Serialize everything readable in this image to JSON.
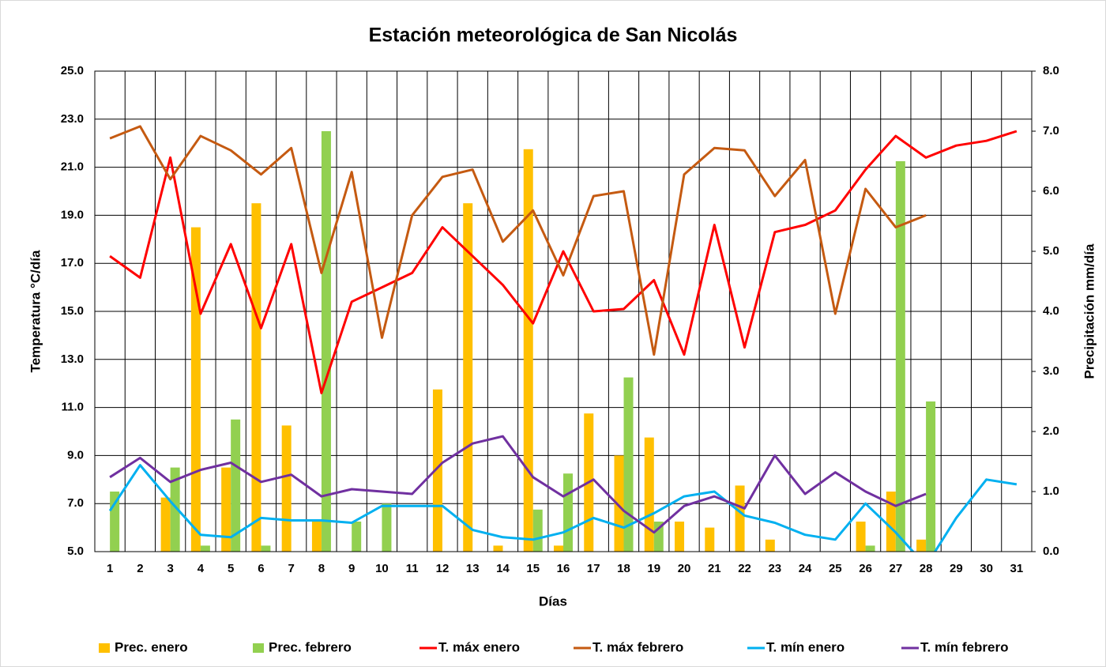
{
  "chart_data": {
    "type": "bar_line",
    "title": "Estación meteorológica de San Nicolás",
    "x_label": "Días",
    "y_label": "Temperatura °C/día",
    "y2_label": "Precipitación mm/día",
    "categories": [
      "1",
      "2",
      "3",
      "4",
      "5",
      "6",
      "7",
      "8",
      "9",
      "10",
      "11",
      "12",
      "13",
      "14",
      "15",
      "16",
      "17",
      "18",
      "19",
      "20",
      "21",
      "22",
      "23",
      "24",
      "25",
      "26",
      "27",
      "28",
      "29",
      "30",
      "31"
    ],
    "ylim": [
      5,
      25
    ],
    "yticks": [
      {
        "value": 5,
        "label": "5.0"
      },
      {
        "value": 7,
        "label": "7.0"
      },
      {
        "value": 9,
        "label": "9.0"
      },
      {
        "value": 11,
        "label": "11.0"
      },
      {
        "value": 13,
        "label": "13.0"
      },
      {
        "value": 15,
        "label": "15.0"
      },
      {
        "value": 17,
        "label": "17.0"
      },
      {
        "value": 19,
        "label": "19.0"
      },
      {
        "value": 21,
        "label": "21.0"
      },
      {
        "value": 23,
        "label": "23.0"
      },
      {
        "value": 25,
        "label": "25.0"
      }
    ],
    "y2lim": [
      0,
      8
    ],
    "y2ticks": [
      {
        "value": 0,
        "label": "0.0"
      },
      {
        "value": 1,
        "label": "1.0"
      },
      {
        "value": 2,
        "label": "2.0"
      },
      {
        "value": 3,
        "label": "3.0"
      },
      {
        "value": 4,
        "label": "4.0"
      },
      {
        "value": 5,
        "label": "5.0"
      },
      {
        "value": 6,
        "label": "6.0"
      },
      {
        "value": 7,
        "label": "7.0"
      },
      {
        "value": 8,
        "label": "8.0"
      }
    ],
    "grid": true,
    "legend": "bottom",
    "series": [
      {
        "name": "Prec. enero",
        "kind": "bar",
        "axis": "y2",
        "color": "#ffc000",
        "values": [
          0,
          0,
          0.9,
          5.4,
          1.4,
          5.8,
          2.1,
          0.5,
          0,
          0,
          0,
          2.7,
          5.8,
          0.1,
          6.7,
          0.1,
          2.3,
          1.6,
          1.9,
          0.5,
          0.4,
          1.1,
          0.2,
          0,
          0,
          0.5,
          1.0,
          0.2,
          0,
          0,
          0
        ]
      },
      {
        "name": "Prec. febrero",
        "kind": "bar",
        "axis": "y2",
        "color": "#92d050",
        "values": [
          1.0,
          0,
          1.4,
          0.1,
          2.2,
          0.1,
          0,
          7.0,
          0.5,
          0.8,
          0,
          0,
          0,
          0,
          0.7,
          1.3,
          0,
          2.9,
          0.5,
          0,
          0,
          0,
          0,
          0,
          0,
          0.1,
          6.5,
          2.5,
          null,
          null,
          null
        ]
      },
      {
        "name": "T. máx enero",
        "kind": "line",
        "color": "#ff0000",
        "values": [
          17.3,
          16.4,
          21.4,
          14.9,
          17.8,
          14.3,
          17.8,
          11.6,
          15.4,
          16.0,
          16.6,
          18.5,
          17.3,
          16.1,
          14.5,
          17.5,
          15.0,
          15.1,
          16.3,
          13.2,
          18.6,
          13.5,
          18.3,
          18.6,
          19.2,
          20.9,
          22.3,
          21.4,
          21.9,
          22.1,
          22.5
        ]
      },
      {
        "name": "T. máx febrero",
        "kind": "line",
        "color": "#c55a11",
        "values": [
          22.2,
          22.7,
          20.5,
          22.3,
          21.7,
          20.7,
          21.8,
          16.6,
          20.8,
          13.9,
          19.0,
          20.6,
          20.9,
          17.9,
          19.2,
          16.5,
          19.8,
          20.0,
          13.2,
          20.7,
          21.8,
          21.7,
          19.8,
          21.3,
          14.9,
          20.1,
          18.5,
          19.0,
          null,
          null,
          null
        ]
      },
      {
        "name": "T. mín enero",
        "kind": "line",
        "color": "#00b0f0",
        "values": [
          6.7,
          8.6,
          7.1,
          5.7,
          5.6,
          6.4,
          6.3,
          6.3,
          6.2,
          6.9,
          6.9,
          6.9,
          5.9,
          5.6,
          5.5,
          5.8,
          6.4,
          6.0,
          6.6,
          7.3,
          7.5,
          6.5,
          6.2,
          5.7,
          5.5,
          7.0,
          5.8,
          4.4,
          6.4,
          8.0,
          7.8
        ]
      },
      {
        "name": "T. mín febrero",
        "kind": "line",
        "color": "#7030a0",
        "values": [
          8.1,
          8.9,
          7.9,
          8.4,
          8.7,
          7.9,
          8.2,
          7.3,
          7.6,
          7.5,
          7.4,
          8.7,
          9.5,
          9.8,
          8.1,
          7.3,
          8.0,
          6.7,
          5.8,
          6.9,
          7.3,
          6.8,
          9.0,
          7.4,
          8.3,
          7.5,
          6.9,
          7.4,
          null,
          null,
          null
        ]
      }
    ]
  }
}
